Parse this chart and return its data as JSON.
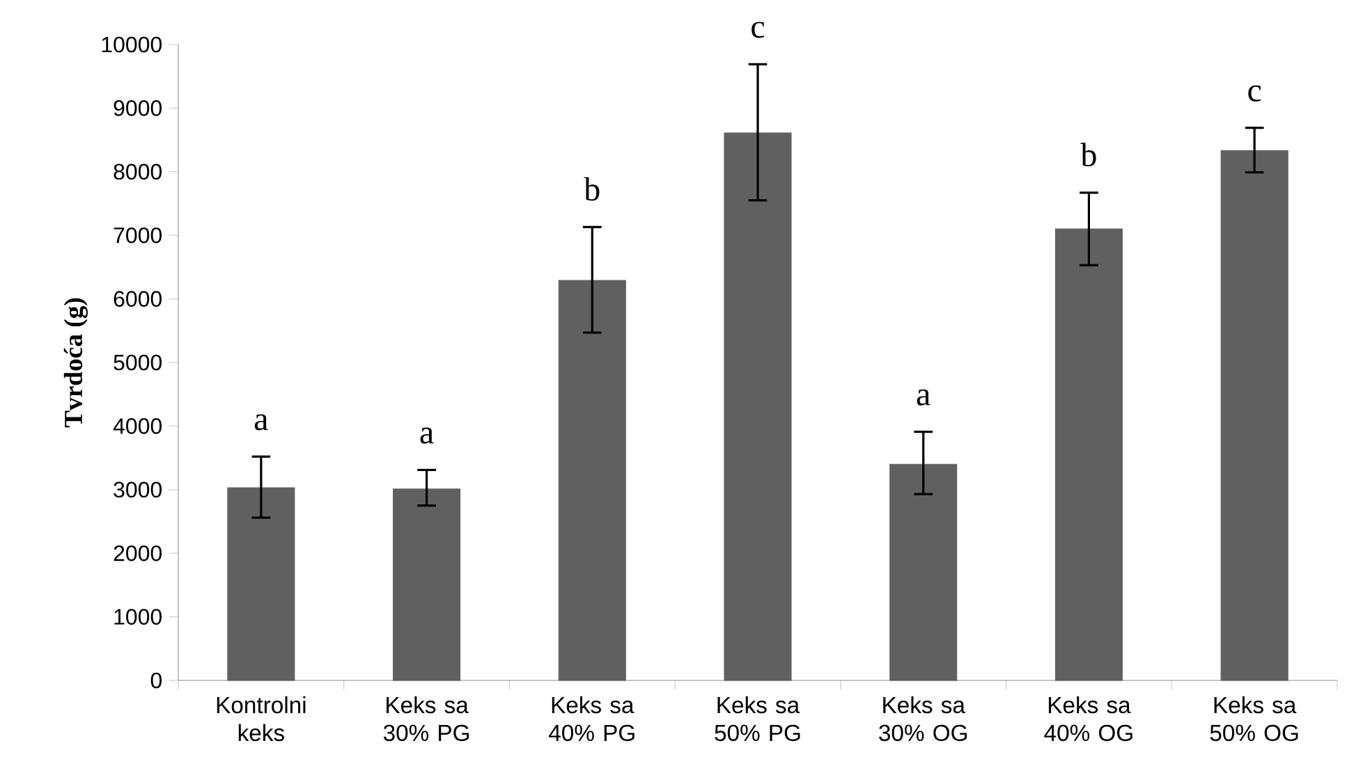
{
  "chart_data": {
    "type": "bar",
    "ylabel": "Tvrdoća (g)",
    "categories": [
      "Kontrolni keks",
      "Keks sa 30% PG",
      "Keks sa 40% PG",
      "Keks sa 50% PG",
      "Keks sa 30% OG",
      "Keks sa 40% OG",
      "Keks sa 50% OG"
    ],
    "values": [
      3030,
      3010,
      6290,
      8610,
      3400,
      7100,
      8330
    ],
    "errors": [
      [
        2560,
        3520
      ],
      [
        2750,
        3310
      ],
      [
        5470,
        7130
      ],
      [
        7550,
        9690
      ],
      [
        2930,
        3910
      ],
      [
        6530,
        7670
      ],
      [
        7990,
        8690
      ]
    ],
    "color": "#606060",
    "ylim": [
      0,
      10000
    ],
    "yticks": [
      0,
      1000,
      2000,
      3000,
      4000,
      5000,
      6000,
      7000,
      8000,
      9000,
      10000
    ],
    "annotations": [
      {
        "text": "a",
        "x": "Kontrolni keks",
        "y": 3520
      },
      {
        "text": "a",
        "x": "Keks sa 30% PG",
        "y": 3310
      },
      {
        "text": "b",
        "x": "Keks sa 40% PG",
        "y": 7130
      },
      {
        "text": "c",
        "x": "Keks sa 50% PG",
        "y": 9690
      },
      {
        "text": "a",
        "x": "Keks sa 30% OG",
        "y": 3910
      },
      {
        "text": "b",
        "x": "Keks sa 40% OG",
        "y": 7670
      },
      {
        "text": "c",
        "x": "Keks sa 50% OG",
        "y": 8690
      }
    ]
  }
}
